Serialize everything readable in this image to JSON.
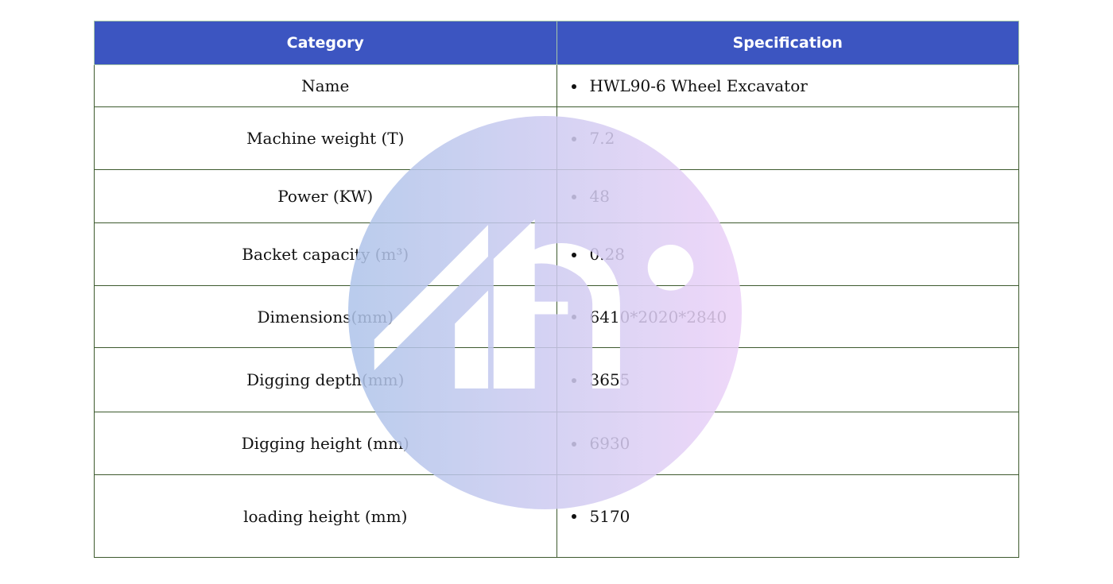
{
  "table": {
    "headers": [
      "Category",
      "Specification"
    ],
    "rows": [
      {
        "category": "Name",
        "value": "HWL90-6 Wheel Excavator"
      },
      {
        "category": "Machine weight (T)",
        "value": "7.2"
      },
      {
        "category": "Power (KW)",
        "value": "48"
      },
      {
        "category": "Backet capacity (m³)",
        "value": "0.28"
      },
      {
        "category": "Dimensions(mm)",
        "value": "6410*2020*2840"
      },
      {
        "category": "Digging depth(mm)",
        "value": "3655"
      },
      {
        "category": "Digging height (mm)",
        "value": "6930"
      },
      {
        "category": "loading height (mm)",
        "value": "5170"
      }
    ]
  },
  "colors": {
    "header_bg": "#3c55c1",
    "header_text": "#ffffff",
    "border": "#3d5a2e",
    "watermark_start": "#aec4ea",
    "watermark_end": "#ecd2f8"
  },
  "watermark": {
    "icon": "brand-logo-watermark"
  }
}
